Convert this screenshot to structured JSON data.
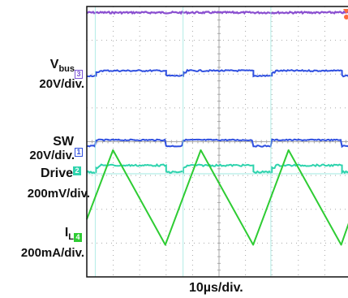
{
  "chart_data": {
    "type": "line",
    "title": "",
    "time_axis": {
      "label": "10µs/div.",
      "divisions": 10,
      "div_value_us": 10
    },
    "vertical_divisions": 8,
    "grid": true,
    "grid_style": "dotted",
    "channels": [
      {
        "id": "bus",
        "name": "V",
        "name_sub": "bus",
        "scale": "20V/div.",
        "marker": "3",
        "color": "#3050e0",
        "shape": "pulses",
        "low_div": 2.05,
        "high_div": 1.9
      },
      {
        "id": "sw",
        "name": "SW",
        "scale": "20V/div.",
        "marker": "1",
        "color": "#8a4fd0",
        "shape": "flat",
        "level_div": 0.18
      },
      {
        "id": "drive",
        "name": "Drive",
        "scale": "200mV/div.",
        "marker": "2",
        "color": "#2ed3ad",
        "shape": "pulses",
        "low_div": 4.9,
        "high_div": 4.7
      },
      {
        "id": "il",
        "name": "I",
        "name_sub": "L",
        "scale": "200mA/div.",
        "marker": "4",
        "color": "#2ecc33",
        "shape": "sawtooth",
        "peak_div": 4.25,
        "valley_div": 7.05
      }
    ],
    "edges_div": [
      {
        "rise": 0.32,
        "peak": 0.99,
        "fall": 2.97
      },
      {
        "rise": 3.64,
        "peak": 4.31,
        "fall": 6.29
      },
      {
        "rise": 6.96,
        "peak": 7.63,
        "fall": 9.62
      }
    ],
    "trigger_marker_color": "#ff6b3d"
  },
  "colors": {
    "grid": "#a8a8a8",
    "frame": "#111111",
    "reference_line": "#9fe8e0"
  }
}
